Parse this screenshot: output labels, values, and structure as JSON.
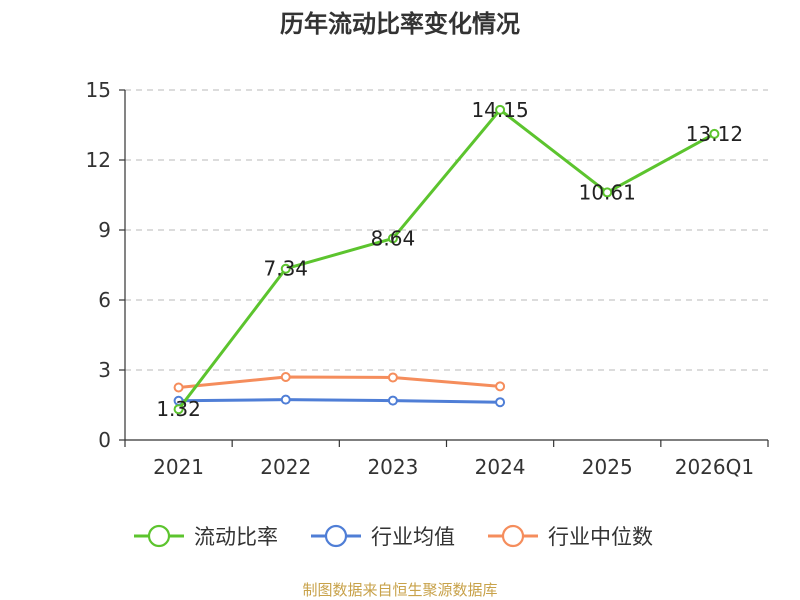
{
  "chart_data": {
    "type": "line",
    "title": "历年流动比率变化情况",
    "categories": [
      "2021",
      "2022",
      "2023",
      "2024",
      "2025",
      "2026Q1"
    ],
    "ylim": [
      0,
      15
    ],
    "yticks": [
      "0",
      "3",
      "6",
      "9",
      "12",
      "15"
    ],
    "grid": true,
    "legend_position": "bottom",
    "series": [
      {
        "name": "流动比率",
        "color": "#5cc42e",
        "values": [
          1.32,
          7.34,
          8.64,
          14.15,
          10.61,
          13.12
        ],
        "labels": [
          "1.32",
          "7.34",
          "8.64",
          "14.15",
          "10.61",
          "13.12"
        ]
      },
      {
        "name": "行业均值",
        "color": "#4f7ed6",
        "values": [
          1.68,
          1.73,
          1.69,
          1.62,
          null,
          null
        ]
      },
      {
        "name": "行业中位数",
        "color": "#f58d5c",
        "values": [
          2.25,
          2.7,
          2.68,
          2.3,
          null,
          null
        ]
      }
    ],
    "source": "制图数据来自恒生聚源数据库"
  }
}
